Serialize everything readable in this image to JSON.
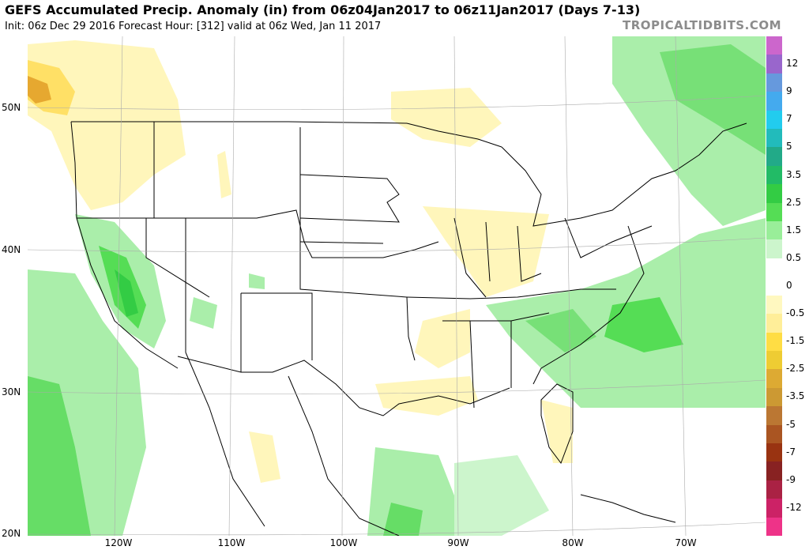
{
  "header": {
    "title": "GEFS Accumulated Precip. Anomaly (in) from 06z04Jan2017 to 06z11Jan2017 (Days 7-13)",
    "subtitle": "Init: 06z Dec 29 2016   Forecast Hour: [312]   valid at 06z Wed, Jan 11 2017",
    "brand": "TROPICALTIDBITS.COM"
  },
  "axes": {
    "lat_labels": [
      "50N",
      "40N",
      "30N",
      "20N"
    ],
    "lon_labels": [
      "120W",
      "110W",
      "100W",
      "90W",
      "80W",
      "70W"
    ]
  },
  "colorbar": {
    "labels": [
      "12",
      "9",
      "7",
      "5",
      "3.5",
      "2.5",
      "1.5",
      "0.5",
      "0",
      "-0.5",
      "-1.5",
      "-2.5",
      "-3.5",
      "-5",
      "-7",
      "-9",
      "-12"
    ],
    "colors": [
      "#cc66cc",
      "#9966cc",
      "#6699dd",
      "#44aaee",
      "#22ccee",
      "#22bbbb",
      "#22aa88",
      "#22bb66",
      "#33cc44",
      "#55dd55",
      "#99ee99",
      "#ccf5cc",
      "#ffffff",
      "#ffffff",
      "#fff8c0",
      "#ffee99",
      "#ffdd44",
      "#eecc33",
      "#ddaa33",
      "#cc9933",
      "#bb7733",
      "#aa5522",
      "#993311",
      "#882222",
      "#aa2244",
      "#cc2266",
      "#ee3388"
    ]
  }
}
